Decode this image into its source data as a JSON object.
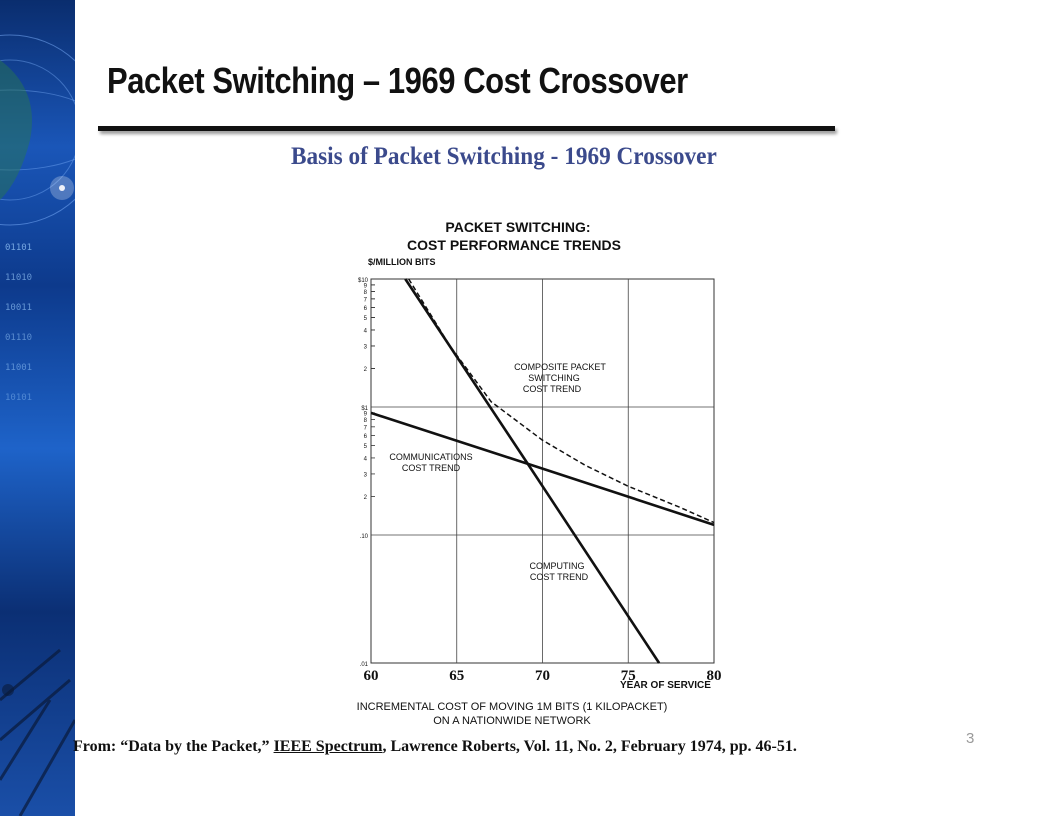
{
  "slide": {
    "title": "Packet Switching – 1969 Cost Crossover",
    "figure_heading": "Basis of Packet Switching - 1969 Crossover",
    "number": "3"
  },
  "citation": {
    "prefix": "From: “Data by the Packet,”",
    "journal": "IEEE Spectrum",
    "suffix": ", Lawrence Roberts, Vol. 11, No. 2, February 1974, pp. 46-51."
  },
  "colors": {
    "side_strip": "#1a56b8",
    "figure_heading": "#3b4a8c"
  },
  "chart_data": {
    "type": "line",
    "title_line1": "PACKET SWITCHING:",
    "title_line2": "COST PERFORMANCE TRENDS",
    "ylabel": "$/MILLION BITS",
    "xlabel": "YEAR OF SERVICE",
    "caption_line1": "INCREMENTAL COST OF MOVING 1M BITS (1 KILOPACKET)",
    "caption_line2": "ON A NATIONWIDE NETWORK",
    "x_ticks": [
      "60",
      "65",
      "70",
      "75",
      "80"
    ],
    "y_major_labels": [
      "$10",
      "$1",
      ".10",
      ".01"
    ],
    "y_minor_labels": [
      "9",
      "8",
      "7",
      "6",
      "5",
      "4",
      "3",
      "2"
    ],
    "xlim": [
      60,
      80
    ],
    "ylim": [
      0.01,
      10
    ],
    "y_scale": "log",
    "grid": true,
    "series": [
      {
        "name": "COMPUTING COST TREND",
        "label_line1": "COMPUTING",
        "label_line2": "COST TREND",
        "style": "solid",
        "points": [
          [
            62,
            10
          ],
          [
            69.2,
            0.35
          ],
          [
            76.8,
            0.01
          ]
        ]
      },
      {
        "name": "COMMUNICATIONS COST TREND",
        "label_line1": "COMMUNICATIONS",
        "label_line2": "COST TREND",
        "style": "solid",
        "points": [
          [
            60,
            0.9
          ],
          [
            70,
            0.33
          ],
          [
            80,
            0.12
          ]
        ]
      },
      {
        "name": "COMPOSITE PACKET SWITCHING COST TREND",
        "label_line1": "COMPOSITE PACKET",
        "label_line2": "SWITCHING",
        "label_line3": "COST TREND",
        "style": "dashed",
        "points": [
          [
            62.2,
            10
          ],
          [
            64.6,
            3.0
          ],
          [
            67,
            1.1
          ],
          [
            70,
            0.55
          ],
          [
            72.5,
            0.35
          ],
          [
            75,
            0.24
          ],
          [
            78,
            0.165
          ],
          [
            80,
            0.125
          ]
        ]
      }
    ]
  }
}
